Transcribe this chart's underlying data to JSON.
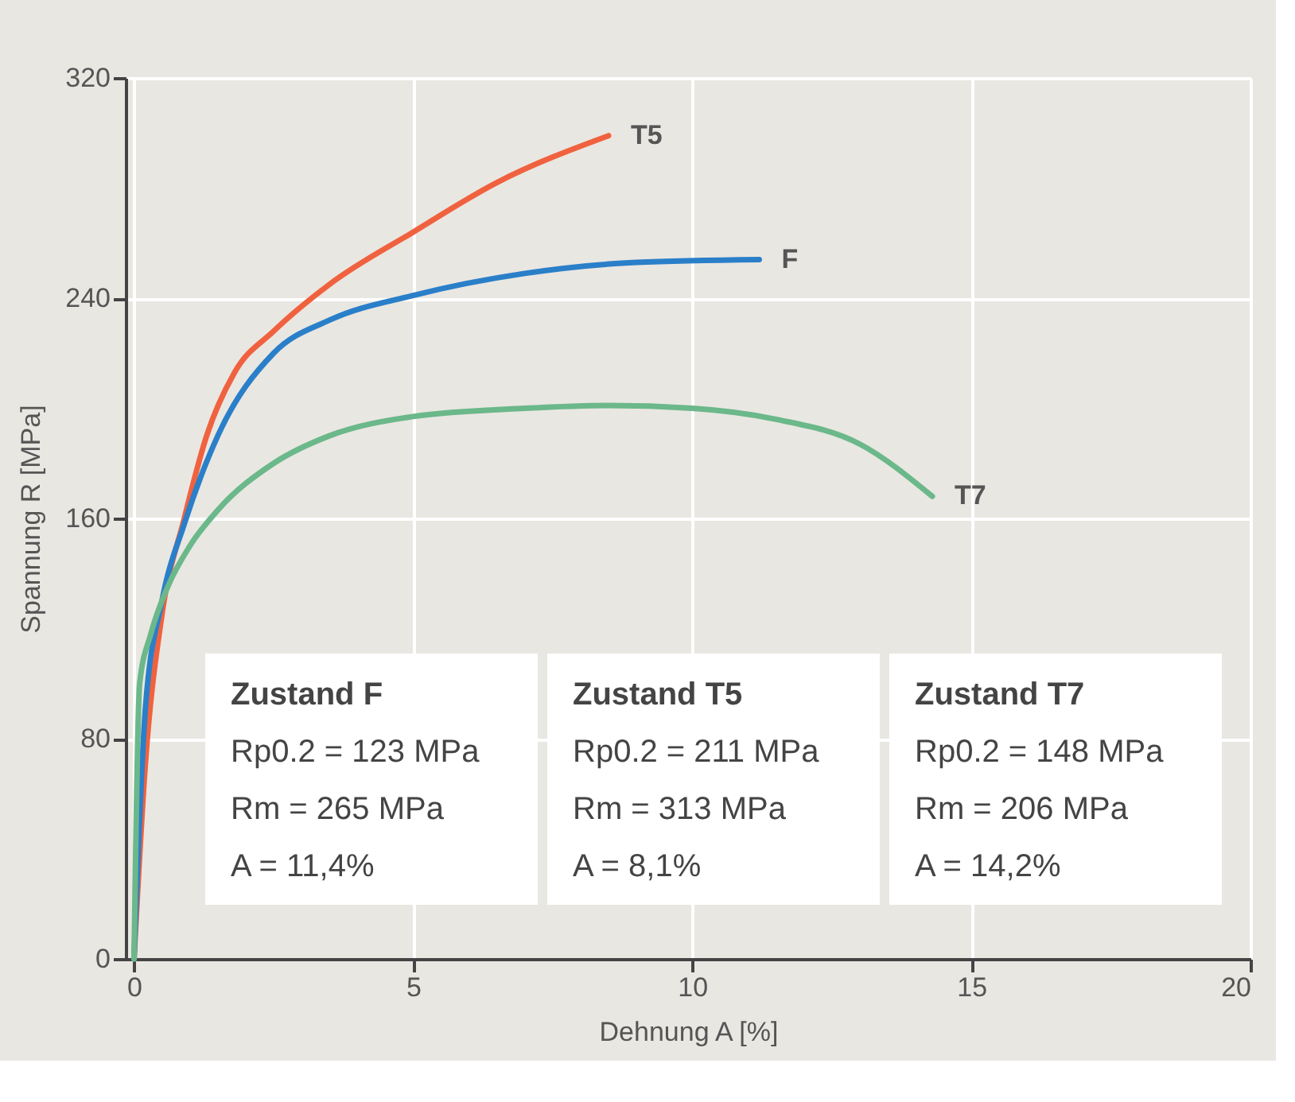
{
  "chart_data": {
    "type": "line",
    "xlabel": "Dehnung A [%]",
    "ylabel": "Spannung R [MPa]",
    "xlim": [
      -0.15,
      20
    ],
    "xticks": [
      0,
      5,
      10,
      15,
      20
    ],
    "ylim": [
      0,
      320
    ],
    "yticks": [
      0,
      80,
      160,
      240,
      320
    ],
    "grid": true,
    "legend": false,
    "line_style": "solid",
    "marker": "none",
    "series": [
      {
        "name": "T5",
        "color": "#f0623f",
        "x": [
          0,
          0.2,
          0.5,
          0.9,
          1.3,
          1.8,
          2.5,
          3.5,
          5,
          6.5,
          8.5
        ],
        "values": [
          0,
          70,
          125,
          160,
          190,
          213,
          228,
          245,
          264,
          282,
          299
        ]
      },
      {
        "name": "F",
        "color": "#2a7fc9",
        "x": [
          0,
          0.2,
          0.5,
          0.9,
          1.5,
          2.5,
          3.5,
          5,
          7,
          9,
          11.2
        ],
        "values": [
          0,
          90,
          130,
          158,
          190,
          220,
          232,
          241,
          249,
          253,
          254
        ]
      },
      {
        "name": "T7",
        "color": "#6bb88a",
        "x": [
          0,
          0.1,
          0.3,
          0.6,
          1,
          1.5,
          2.5,
          3.5,
          5,
          7,
          8.5,
          10,
          11.5,
          13,
          14.3
        ],
        "values": [
          0,
          100,
          118,
          135,
          150,
          163,
          180,
          190,
          197,
          200,
          201,
          200,
          196,
          187,
          168
        ]
      }
    ],
    "annotations": [
      "Zustand F",
      "Rp0.2 = 123 MPa",
      "Rm    = 265 MPa",
      "A      = 11,4%",
      "Zustand T5",
      "Rp0.2 = 211 MPa",
      "Rm    = 313 MPa",
      "A      = 8,1%",
      "Zustand T7",
      "Rp0.2 = 148 MPa",
      "Rm    = 206 MPa",
      "A      = 14,2%"
    ]
  }
}
